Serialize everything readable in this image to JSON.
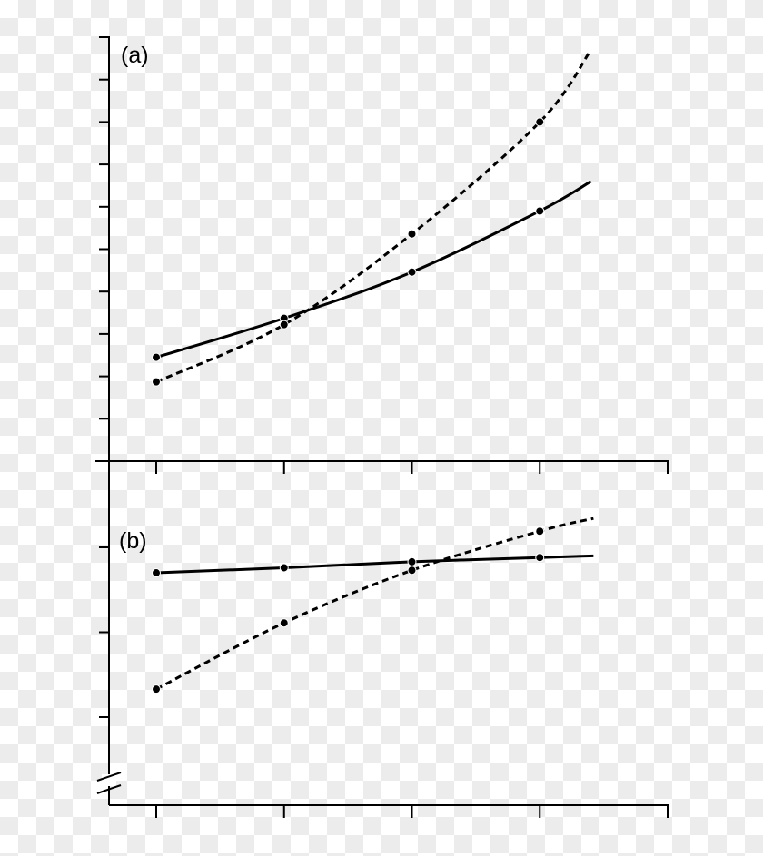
{
  "chart_data": [
    {
      "type": "line",
      "panel_label": "(a)",
      "x_ticks": [
        1,
        2,
        3,
        4,
        5
      ],
      "xlim": [
        0.65,
        5
      ],
      "y_ticks": [
        0,
        1,
        2,
        3,
        4,
        5,
        6,
        7,
        8,
        9,
        10
      ],
      "ylim": [
        0,
        10
      ],
      "tick_labels_shown": false,
      "grid": false,
      "series": [
        {
          "style": "solid",
          "color": "#000000",
          "x": [
            1,
            2,
            3,
            4
          ],
          "y": [
            2.45,
            3.37,
            4.46,
            5.9
          ],
          "curve_end": [
            4.4,
            6.6
          ]
        },
        {
          "style": "dashed",
          "color": "#000000",
          "x": [
            1,
            2,
            3,
            4
          ],
          "y": [
            1.87,
            3.22,
            5.36,
            8.0
          ],
          "curve_end": [
            4.4,
            9.7
          ]
        }
      ]
    },
    {
      "type": "line",
      "panel_label": "(b)",
      "x_ticks": [
        1,
        2,
        3,
        4,
        5
      ],
      "xlim": [
        0.65,
        5
      ],
      "y_ticks": [
        1,
        2,
        3
      ],
      "ylim": [
        0,
        4
      ],
      "y_axis_break": true,
      "tick_labels_shown": false,
      "grid": false,
      "series": [
        {
          "style": "solid",
          "color": "#000000",
          "x": [
            1,
            2,
            3,
            4
          ],
          "y": [
            2.7,
            2.76,
            2.83,
            2.88
          ],
          "curve_end": [
            4.42,
            2.9
          ]
        },
        {
          "style": "dashed",
          "color": "#000000",
          "x": [
            1,
            2,
            3,
            4
          ],
          "y": [
            1.33,
            2.11,
            2.73,
            3.19
          ],
          "curve_end": [
            4.42,
            3.34
          ]
        }
      ]
    }
  ]
}
